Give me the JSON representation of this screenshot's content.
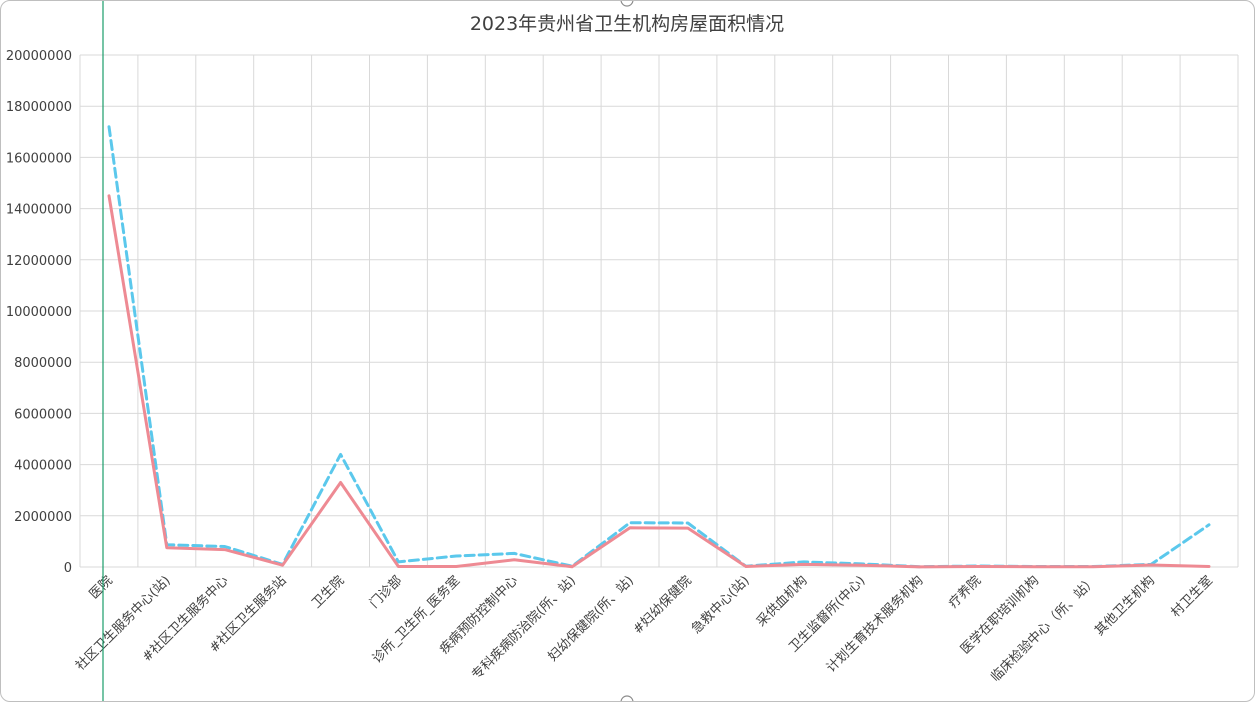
{
  "chart_data": {
    "type": "line",
    "title": "2023年贵州省卫生机构房屋面积情况",
    "xlabel": "",
    "ylabel": "",
    "ylim": [
      0,
      20000000
    ],
    "yticks": [
      "0",
      "2000000",
      "4000000",
      "6000000",
      "8000000",
      "10000000",
      "12000000",
      "14000000",
      "16000000",
      "18000000",
      "20000000"
    ],
    "grid": true,
    "legend": "none",
    "categories": [
      "医院",
      "社区卫生服务中心(站)",
      "#社区卫生服务中心",
      "#社区卫生服务站",
      "卫生院",
      "门诊部",
      "诊所_卫生所_医务室",
      "疾病预防控制中心",
      "专科疾病防治院(所、站)",
      "妇幼保健院(所、站)",
      "#妇幼保健院",
      "急救中心(站)",
      "采供血机构",
      "卫生监督所(中心)",
      "计划生育技术服务机构",
      "疗养院",
      "医学在职培训机构",
      "临床检验中心（所、站）",
      "其他卫生机构",
      "村卫生室"
    ],
    "series": [
      {
        "color": "#5bc8ec",
        "style": "dashed",
        "values": [
          17200000,
          870000,
          800000,
          100000,
          4400000,
          200000,
          430000,
          530000,
          30000,
          1730000,
          1720000,
          30000,
          200000,
          120000,
          10000,
          40000,
          20000,
          20000,
          100000,
          1650000
        ]
      },
      {
        "color": "#ee8a93",
        "style": "solid",
        "values": [
          14500000,
          750000,
          680000,
          70000,
          3300000,
          20000,
          20000,
          280000,
          10000,
          1530000,
          1520000,
          20000,
          100000,
          70000,
          5000,
          20000,
          10000,
          10000,
          80000,
          20000
        ]
      }
    ]
  }
}
